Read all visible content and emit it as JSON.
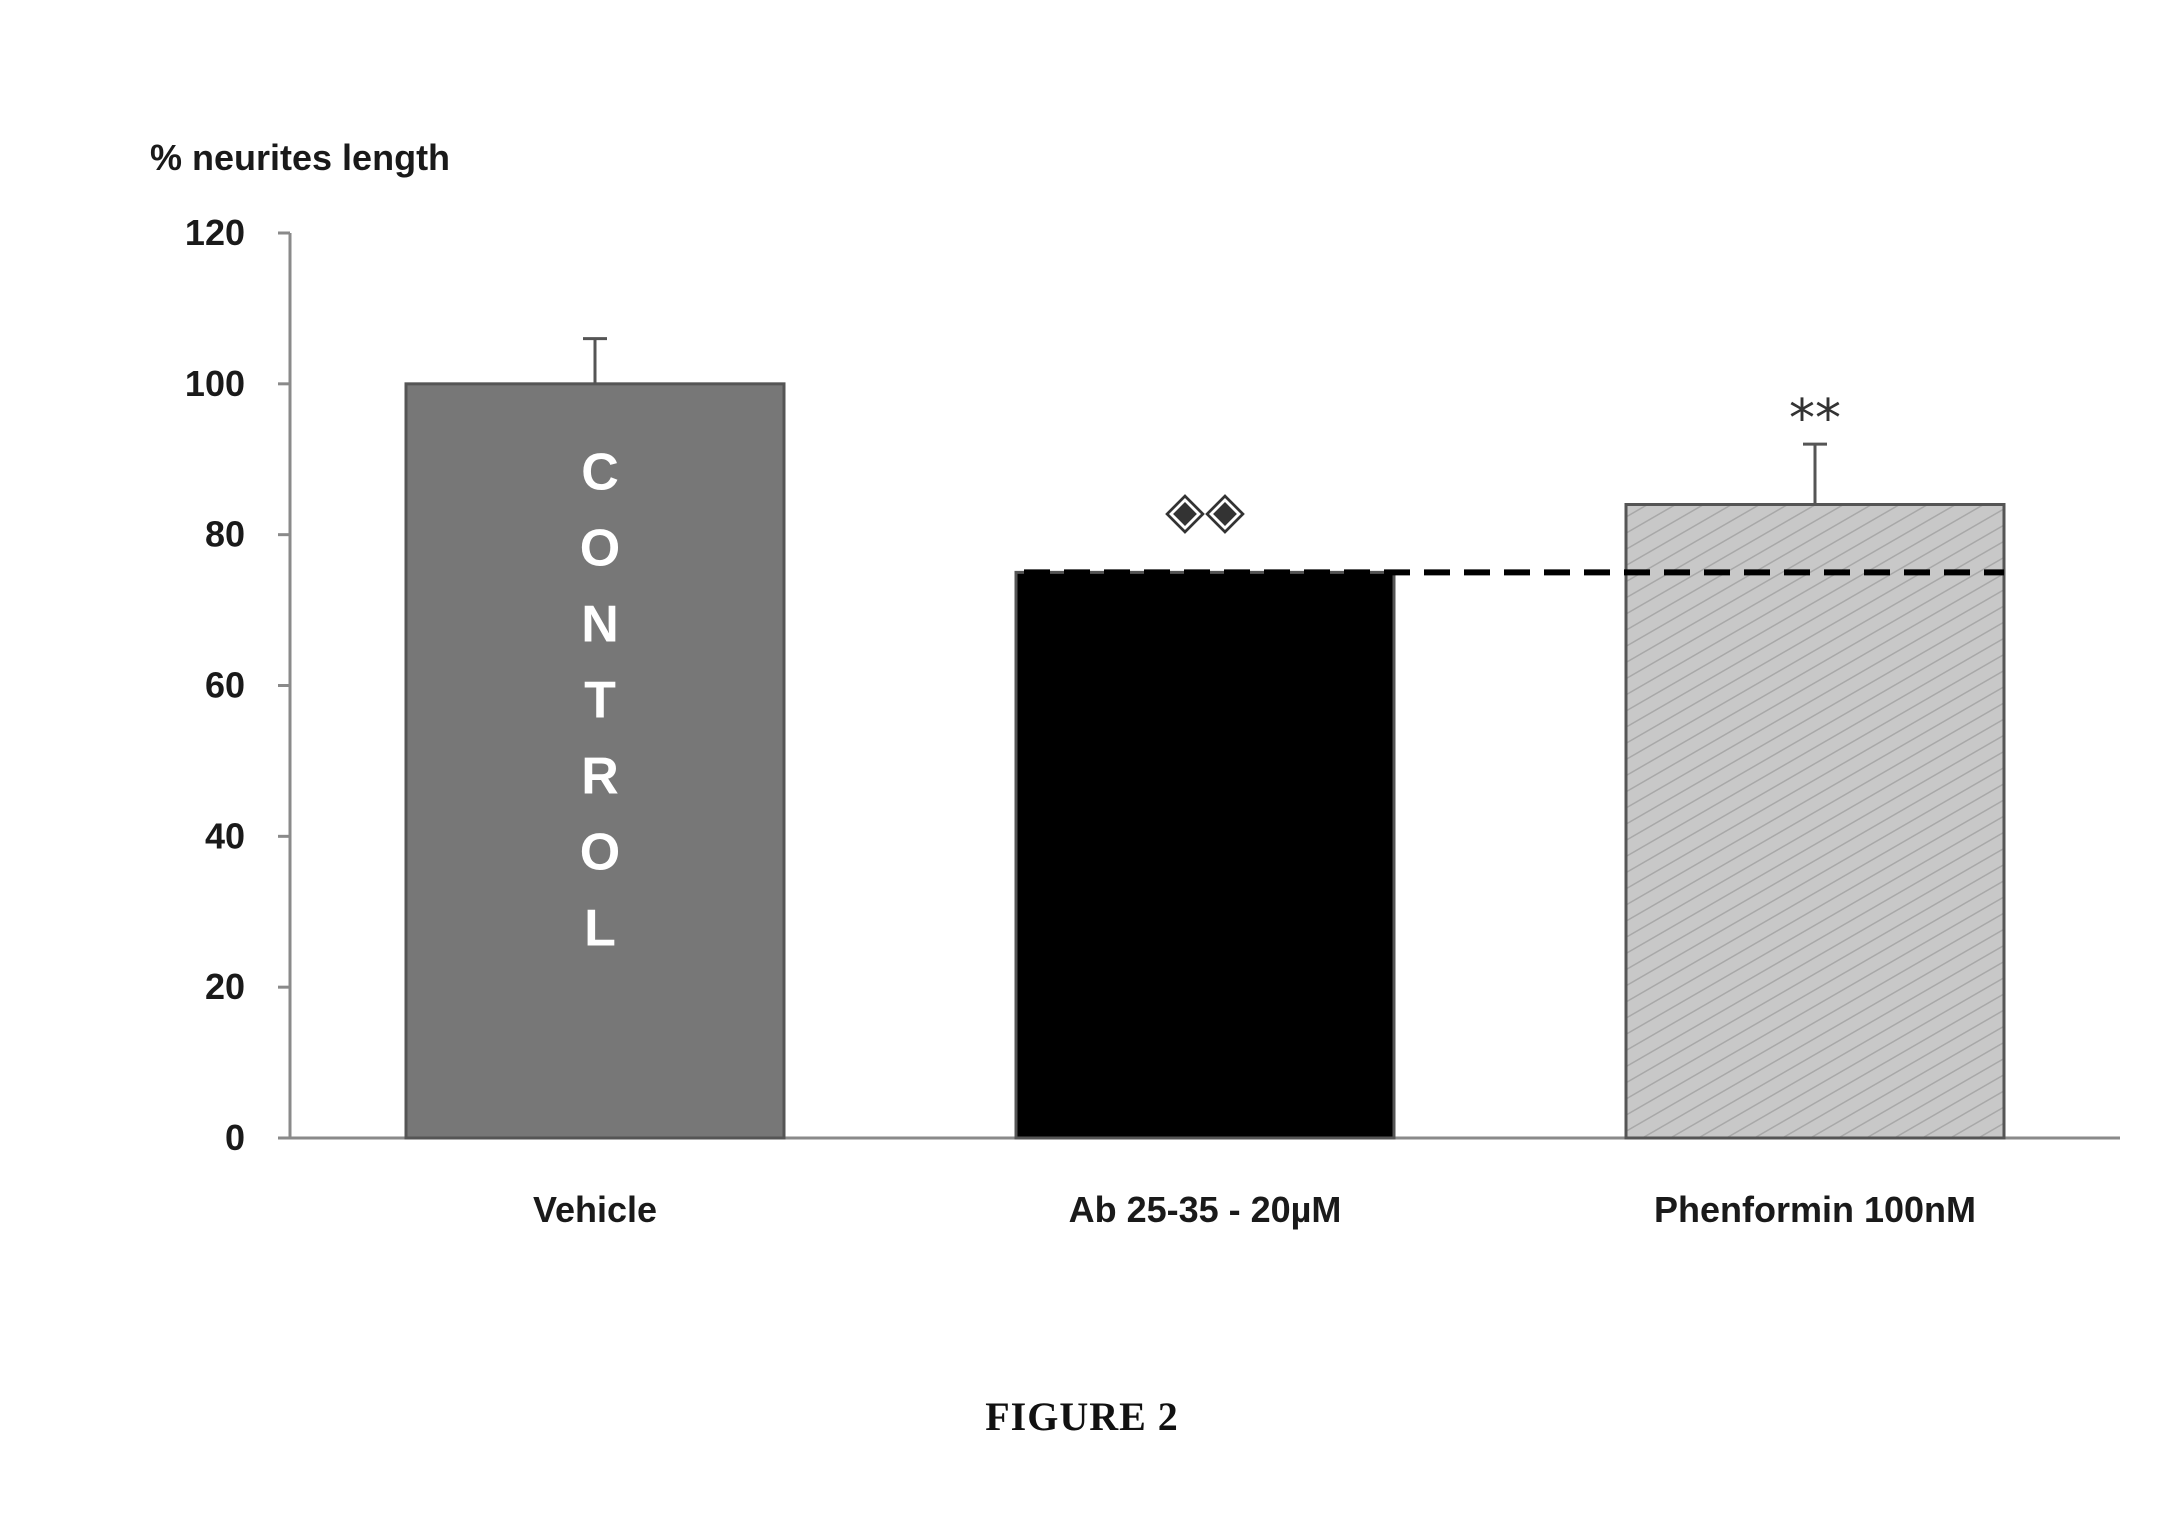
{
  "chart_data": {
    "type": "bar",
    "title": "",
    "ylabel": "% neurites length",
    "xlabel": "",
    "ylim": [
      0,
      120
    ],
    "yticks": [
      0,
      20,
      40,
      60,
      80,
      100,
      120
    ],
    "categories": [
      "Vehicle",
      "Ab 25-35 - 20µM",
      "Phenformin 100nM"
    ],
    "values": [
      100,
      75,
      84
    ],
    "errors": [
      6,
      0,
      8
    ],
    "bar_colors": [
      "#777777",
      "#000000",
      "#c4c4c4"
    ],
    "bar_inner_labels": [
      "CONTROL",
      "",
      ""
    ],
    "annotations": [
      "",
      "◈◈",
      "**"
    ],
    "reference_line": {
      "value": 75,
      "style": "dashed",
      "color": "#000000"
    },
    "grid": false,
    "legend": "none"
  },
  "caption": "FIGURE 2"
}
